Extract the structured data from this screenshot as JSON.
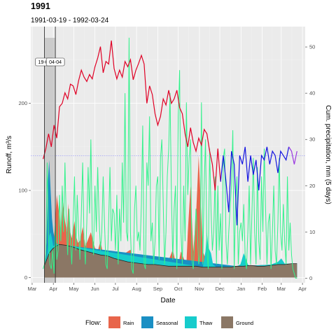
{
  "chart_data": {
    "type": "line",
    "title": "1991",
    "subtitle": "1991-03-19 - 1992-03-24",
    "xlabel": "Date",
    "ylabel": "Runoff, m³/s",
    "ylabel_right": "Cum. precipitation, mm (5 days)",
    "x_ticks": [
      "Mar",
      "Apr",
      "May",
      "Jun",
      "Jul",
      "Aug",
      "Sep",
      "Oct",
      "Nov",
      "Dec",
      "Jan",
      "Feb",
      "Mar",
      "Apr"
    ],
    "x_tick_days": [
      0,
      31,
      61,
      92,
      122,
      153,
      184,
      214,
      245,
      275,
      306,
      337,
      365,
      396
    ],
    "y_ticks": [
      0,
      100,
      200
    ],
    "y_right_ticks": [
      0,
      10,
      20,
      30,
      40,
      50
    ],
    "ylim": [
      -6,
      288
    ],
    "ylim_right": [
      -1,
      54.4
    ],
    "xlim_days": [
      -2,
      400
    ],
    "reference_line": {
      "y": 140,
      "color": "#7a7aff"
    },
    "markers": [
      {
        "label": "19-03",
        "day": 18
      },
      {
        "label": "04-04",
        "day": 34
      }
    ],
    "shaded_band_days": [
      18,
      34
    ],
    "legend": {
      "title": "Flow:",
      "position": "bottom",
      "items": [
        {
          "label": "Rain",
          "color": "#e8654b"
        },
        {
          "label": "Seasonal",
          "color": "#1a8fc4"
        },
        {
          "label": "Thaw",
          "color": "#17cccc"
        },
        {
          "label": "Ground",
          "color": "#8b7765"
        }
      ]
    },
    "colors": {
      "total_red": "#e00025",
      "total_blue": "#1414e0",
      "total_purple": "#9b38e0",
      "precip": "#33f28c",
      "ground_line": "#222222"
    },
    "series": [
      {
        "name": "Ground",
        "x": [
          18,
          25,
          30,
          35,
          40,
          50,
          60,
          70,
          80,
          90,
          100,
          110,
          120,
          130,
          140,
          150,
          160,
          170,
          180,
          190,
          200,
          210,
          220,
          230,
          240,
          250,
          260,
          270,
          280,
          290,
          300,
          310,
          320,
          330,
          340,
          350,
          360,
          370,
          380,
          388
        ],
        "y": [
          14,
          28,
          33,
          36,
          38,
          37,
          35,
          32,
          30,
          28,
          26,
          25,
          22,
          20,
          18,
          17,
          16,
          15,
          15,
          14,
          13,
          13,
          13,
          13,
          13,
          12,
          12,
          12,
          12,
          12,
          13,
          13,
          14,
          13,
          13,
          14,
          15,
          15,
          16,
          16
        ]
      },
      {
        "name": "Rain",
        "x": [
          20,
          30,
          33,
          36,
          40,
          42,
          45,
          48,
          51,
          53,
          55,
          58,
          62,
          64,
          67,
          70,
          74,
          78,
          82,
          86,
          92,
          96,
          100,
          104,
          110,
          120,
          130,
          136,
          140,
          144,
          150,
          160,
          170,
          190,
          200,
          206,
          210,
          214,
          218,
          222,
          226,
          228,
          232,
          236,
          240,
          244,
          250,
          255,
          260,
          270,
          280,
          300,
          330,
          360,
          388
        ],
        "y": [
          14,
          33,
          55,
          95,
          70,
          48,
          88,
          65,
          52,
          85,
          55,
          45,
          65,
          48,
          40,
          42,
          58,
          36,
          44,
          52,
          34,
          30,
          42,
          26,
          22,
          20,
          19,
          28,
          30,
          32,
          18,
          17,
          15,
          14,
          20,
          32,
          18,
          14,
          30,
          22,
          15,
          52,
          105,
          30,
          70,
          140,
          30,
          20,
          13,
          12,
          12,
          13,
          14,
          15,
          16
        ]
      },
      {
        "name": "Seasonal",
        "x": [
          18,
          21,
          23,
          25,
          27,
          29,
          31,
          34,
          37,
          40,
          300,
          388
        ],
        "y": [
          14,
          40,
          110,
          135,
          100,
          68,
          52,
          42,
          38,
          38,
          13,
          16
        ]
      },
      {
        "name": "Thaw",
        "x": [
          18,
          22,
          25,
          27,
          29,
          31,
          34,
          38,
          42,
          250,
          254,
          256,
          258,
          262,
          265,
          270,
          300,
          305,
          310,
          313,
          316,
          320,
          330,
          350,
          360,
          365,
          370,
          388
        ],
        "y": [
          14,
          25,
          48,
          52,
          45,
          36,
          38,
          38,
          38,
          12,
          30,
          52,
          35,
          28,
          15,
          12,
          13,
          15,
          28,
          22,
          15,
          13,
          14,
          15,
          18,
          22,
          16,
          16
        ]
      },
      {
        "name": "Total runoff",
        "x": [
          16,
          20,
          24,
          28,
          32,
          36,
          40,
          44,
          48,
          52,
          56,
          60,
          64,
          68,
          72,
          76,
          80,
          84,
          88,
          92,
          96,
          100,
          104,
          108,
          112,
          116,
          120,
          124,
          128,
          132,
          136,
          140,
          144,
          148,
          152,
          156,
          160,
          164,
          168,
          172,
          176,
          180,
          184,
          188,
          192,
          196,
          200,
          204,
          208,
          212,
          216,
          220,
          224,
          228,
          232,
          236,
          240,
          244,
          248,
          252,
          256,
          260,
          264,
          268,
          272,
          276,
          280,
          284,
          288,
          292,
          296,
          300,
          304,
          308,
          312,
          316,
          320,
          324,
          328,
          332,
          336,
          340,
          344,
          348,
          352,
          356,
          360,
          364,
          368,
          372,
          376,
          380,
          384,
          388
        ],
        "y": [
          136,
          148,
          165,
          150,
          175,
          160,
          196,
          200,
          212,
          205,
          222,
          220,
          210,
          226,
          238,
          230,
          225,
          233,
          228,
          242,
          252,
          265,
          235,
          248,
          245,
          272,
          240,
          228,
          238,
          230,
          248,
          242,
          250,
          227,
          238,
          246,
          255,
          245,
          200,
          220,
          210,
          188,
          175,
          185,
          205,
          198,
          215,
          200,
          205,
          215,
          195,
          188,
          165,
          150,
          172,
          155,
          145,
          160,
          152,
          170,
          165,
          145,
          130,
          100,
          148,
          110,
          140,
          110,
          75,
          145,
          130,
          60,
          140,
          130,
          150,
          110,
          140,
          118,
          135,
          100,
          140,
          135,
          150,
          130,
          145,
          140,
          120,
          145,
          140,
          135,
          150,
          145,
          130,
          145
        ]
      },
      {
        "name": "Precipitation",
        "x": [
          16,
          18,
          20,
          22,
          24,
          26,
          28,
          30,
          32,
          34,
          36,
          38,
          40,
          42,
          44,
          46,
          48,
          50,
          52,
          54,
          56,
          58,
          60,
          62,
          64,
          66,
          68,
          70,
          72,
          74,
          76,
          78,
          80,
          82,
          84,
          86,
          88,
          90,
          92,
          94,
          96,
          98,
          100,
          102,
          104,
          106,
          108,
          110,
          112,
          114,
          116,
          118,
          120,
          122,
          124,
          126,
          128,
          130,
          132,
          134,
          136,
          138,
          140,
          142,
          144,
          146,
          148,
          150,
          152,
          154,
          156,
          158,
          160,
          162,
          164,
          166,
          168,
          170,
          172,
          174,
          176,
          178,
          180,
          182,
          184,
          186,
          188,
          190,
          192,
          194,
          196,
          198,
          200,
          202,
          204,
          206,
          208,
          210,
          212,
          214,
          216,
          218,
          220,
          222,
          224,
          226,
          228,
          230,
          232,
          234,
          236,
          238,
          240,
          242,
          244,
          246,
          248,
          250,
          252,
          254,
          256,
          258,
          260,
          262,
          264,
          266,
          268,
          270,
          272,
          274,
          276,
          278,
          280,
          282,
          284,
          286,
          288,
          290,
          292,
          294,
          296,
          298,
          300,
          302,
          304,
          306,
          308,
          310,
          312,
          314,
          316,
          318,
          320,
          322,
          324,
          326,
          328,
          330,
          332,
          334,
          336,
          338,
          340,
          342,
          344,
          346,
          348,
          350,
          352,
          354,
          356,
          358,
          360,
          362,
          364,
          366,
          368,
          370,
          372,
          374,
          376,
          378,
          380,
          382,
          384,
          386,
          388
        ],
        "y": [
          2,
          3,
          5,
          25,
          8,
          3,
          2,
          6,
          1,
          12,
          4,
          6,
          18,
          8,
          20,
          10,
          25,
          12,
          5,
          15,
          8,
          3,
          12,
          22,
          6,
          18,
          10,
          4,
          14,
          25,
          8,
          3,
          12,
          24,
          14,
          30,
          10,
          5,
          20,
          10,
          24,
          13,
          6,
          10,
          22,
          12,
          3,
          2,
          12,
          24,
          8,
          15,
          14,
          6,
          18,
          3,
          15,
          8,
          25,
          12,
          40,
          10,
          8,
          52,
          10,
          2,
          1,
          15,
          20,
          8,
          10,
          6,
          16,
          33,
          3,
          2,
          25,
          20,
          35,
          8,
          12,
          3,
          8,
          20,
          22,
          4,
          26,
          30,
          16,
          3,
          10,
          22,
          28,
          40,
          18,
          4,
          15,
          20,
          2,
          35,
          45,
          10,
          3,
          20,
          8,
          38,
          18,
          26,
          30,
          4,
          2,
          8,
          15,
          10,
          3,
          5,
          38,
          3,
          20,
          30,
          6,
          2,
          28,
          15,
          6,
          10,
          22,
          3,
          20,
          6,
          14,
          2,
          26,
          28,
          8,
          3,
          10,
          15,
          20,
          32,
          2,
          16,
          22,
          3,
          10,
          12,
          8,
          16,
          5,
          2,
          10,
          20,
          3,
          14,
          26,
          10,
          3,
          24,
          8,
          4,
          22,
          10,
          28,
          15,
          3,
          12,
          14,
          2,
          10,
          20,
          6,
          3,
          12,
          26,
          10,
          6,
          16,
          8,
          3,
          22,
          6,
          12,
          5,
          2,
          1,
          0,
          0
        ]
      }
    ]
  }
}
